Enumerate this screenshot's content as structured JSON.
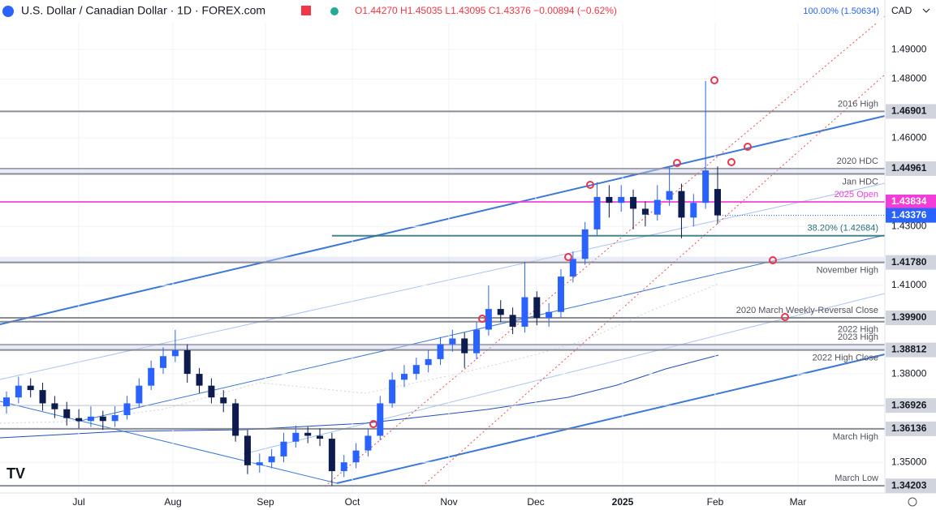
{
  "header": {
    "title": "U.S. Dollar / Canadian Dollar · 1D · FOREX.com",
    "ohlc": "O1.44270 H1.45035 L1.43095 C1.43376 −0.00894 (−0.62%)",
    "currency": "CAD",
    "fib_top": "100.00% (1.50634)"
  },
  "chart_data": {
    "type": "candlestick",
    "x_labels": [
      "Jul",
      "Aug",
      "Sep",
      "Oct",
      "Nov",
      "Dec",
      "2025",
      "Feb",
      "Mar"
    ],
    "up_color": "#2962ff",
    "down_color": "#0d1b4f",
    "ylim": [
      1.3396,
      1.5068
    ],
    "yticks": [
      {
        "value": 1.49,
        "label": "1.49000"
      },
      {
        "value": 1.48,
        "label": "1.48000"
      },
      {
        "value": 1.46,
        "label": "1.46000"
      },
      {
        "value": 1.43,
        "label": "1.43000"
      },
      {
        "value": 1.41,
        "label": "1.41000"
      },
      {
        "value": 1.38,
        "label": "1.38000"
      },
      {
        "value": 1.35,
        "label": "1.35000"
      }
    ],
    "levels": [
      {
        "name": "2016 High",
        "value": 1.46901,
        "label": "1.46901",
        "color": "#787b86",
        "side": "above"
      },
      {
        "name": "2020 HDC",
        "value": 1.44961,
        "label": "1.44961",
        "color": "#787b86",
        "side": "above"
      },
      {
        "name": "Jan HDC",
        "value": 1.4478,
        "color": "#787b86",
        "side": "below",
        "band": true
      },
      {
        "name": "2025 Open",
        "value": 1.43834,
        "label": "1.43834",
        "color": "#f23dd9",
        "side": "above"
      },
      {
        "name": "38.20% (1.42684)",
        "value": 1.42684,
        "color": "#2a6f7a",
        "side": "above",
        "fib": true
      },
      {
        "name": "November High",
        "value": 1.4178,
        "label": "1.41780",
        "color": "#787b86",
        "side": "below",
        "band": true
      },
      {
        "name": "2020 March Weekly-Reversal Close",
        "value": 1.399,
        "label": "1.39900",
        "color": "#787b86",
        "side": "above"
      },
      {
        "name": "2022 High",
        "value": 1.3977,
        "color": "#787b86",
        "side": "below"
      },
      {
        "name": "2023 High",
        "value": 1.3899,
        "color": "#787b86",
        "side": "above"
      },
      {
        "name": "2022 High Close",
        "value": 1.38812,
        "label": "1.38812",
        "color": "#787b86",
        "side": "below",
        "band": true
      },
      {
        "value": 1.36926,
        "label": "1.36926",
        "color": "#b2b5be"
      },
      {
        "name": "March High",
        "value": 1.36136,
        "label": "1.36136",
        "color": "#787b86",
        "side": "below"
      },
      {
        "name": "March Low",
        "value": 1.34203,
        "label": "1.34203",
        "color": "#787b86",
        "side": "above"
      }
    ],
    "candles": [
      [
        1.369,
        1.374,
        1.3665,
        1.372
      ],
      [
        1.372,
        1.379,
        1.37,
        1.376
      ],
      [
        1.376,
        1.3785,
        1.372,
        1.3745
      ],
      [
        1.3745,
        1.377,
        1.3675,
        1.37
      ],
      [
        1.37,
        1.3725,
        1.365,
        1.368
      ],
      [
        1.368,
        1.3705,
        1.3625,
        1.365
      ],
      [
        1.365,
        1.368,
        1.3615,
        1.364
      ],
      [
        1.364,
        1.369,
        1.362,
        1.3655
      ],
      [
        1.3655,
        1.3675,
        1.361,
        1.364
      ],
      [
        1.364,
        1.369,
        1.362,
        1.366
      ],
      [
        1.366,
        1.3725,
        1.3645,
        1.37
      ],
      [
        1.37,
        1.3785,
        1.3685,
        1.376
      ],
      [
        1.376,
        1.3845,
        1.3745,
        1.382
      ],
      [
        1.382,
        1.389,
        1.38,
        1.386
      ],
      [
        1.386,
        1.3949,
        1.384,
        1.388
      ],
      [
        1.388,
        1.39,
        1.377,
        1.38
      ],
      [
        1.38,
        1.382,
        1.3735,
        1.376
      ],
      [
        1.376,
        1.3785,
        1.37,
        1.372
      ],
      [
        1.372,
        1.3745,
        1.367,
        1.37
      ],
      [
        1.37,
        1.3715,
        1.357,
        1.359
      ],
      [
        1.359,
        1.361,
        1.346,
        1.349
      ],
      [
        1.349,
        1.353,
        1.3465,
        1.35
      ],
      [
        1.35,
        1.3545,
        1.348,
        1.352
      ],
      [
        1.352,
        1.36,
        1.35,
        1.357
      ],
      [
        1.357,
        1.3625,
        1.355,
        1.36
      ],
      [
        1.36,
        1.362,
        1.3565,
        1.359
      ],
      [
        1.359,
        1.3615,
        1.3555,
        1.358
      ],
      [
        1.358,
        1.36,
        1.34203,
        1.347
      ],
      [
        1.347,
        1.3525,
        1.345,
        1.35
      ],
      [
        1.35,
        1.3565,
        1.348,
        1.354
      ],
      [
        1.354,
        1.3615,
        1.352,
        1.359
      ],
      [
        1.359,
        1.3725,
        1.3575,
        1.37
      ],
      [
        1.37,
        1.3805,
        1.3685,
        1.378
      ],
      [
        1.378,
        1.383,
        1.3755,
        1.38
      ],
      [
        1.38,
        1.3855,
        1.378,
        1.383
      ],
      [
        1.383,
        1.388,
        1.3805,
        1.385
      ],
      [
        1.385,
        1.3925,
        1.383,
        1.39
      ],
      [
        1.39,
        1.395,
        1.3875,
        1.392
      ],
      [
        1.392,
        1.394,
        1.382,
        1.387
      ],
      [
        1.387,
        1.3975,
        1.385,
        1.395
      ],
      [
        1.395,
        1.41,
        1.393,
        1.402
      ],
      [
        1.402,
        1.405,
        1.3975,
        1.4
      ],
      [
        1.4,
        1.4025,
        1.3935,
        1.396
      ],
      [
        1.396,
        1.418,
        1.394,
        1.406
      ],
      [
        1.406,
        1.408,
        1.3965,
        1.399
      ],
      [
        1.399,
        1.404,
        1.396,
        1.401
      ],
      [
        1.401,
        1.4155,
        1.399,
        1.413
      ],
      [
        1.413,
        1.4215,
        1.411,
        1.419
      ],
      [
        1.419,
        1.4315,
        1.417,
        1.429
      ],
      [
        1.429,
        1.445,
        1.427,
        1.44
      ],
      [
        1.44,
        1.444,
        1.433,
        1.438
      ],
      [
        1.438,
        1.444,
        1.435,
        1.44
      ],
      [
        1.44,
        1.4425,
        1.429,
        1.436
      ],
      [
        1.436,
        1.4385,
        1.43,
        1.434
      ],
      [
        1.434,
        1.444,
        1.432,
        1.439
      ],
      [
        1.439,
        1.45,
        1.437,
        1.442
      ],
      [
        1.442,
        1.4445,
        1.426,
        1.433
      ],
      [
        1.433,
        1.441,
        1.43,
        1.438
      ],
      [
        1.438,
        1.4793,
        1.436,
        1.449
      ],
      [
        1.4427,
        1.45035,
        1.43095,
        1.43376
      ]
    ]
  }
}
